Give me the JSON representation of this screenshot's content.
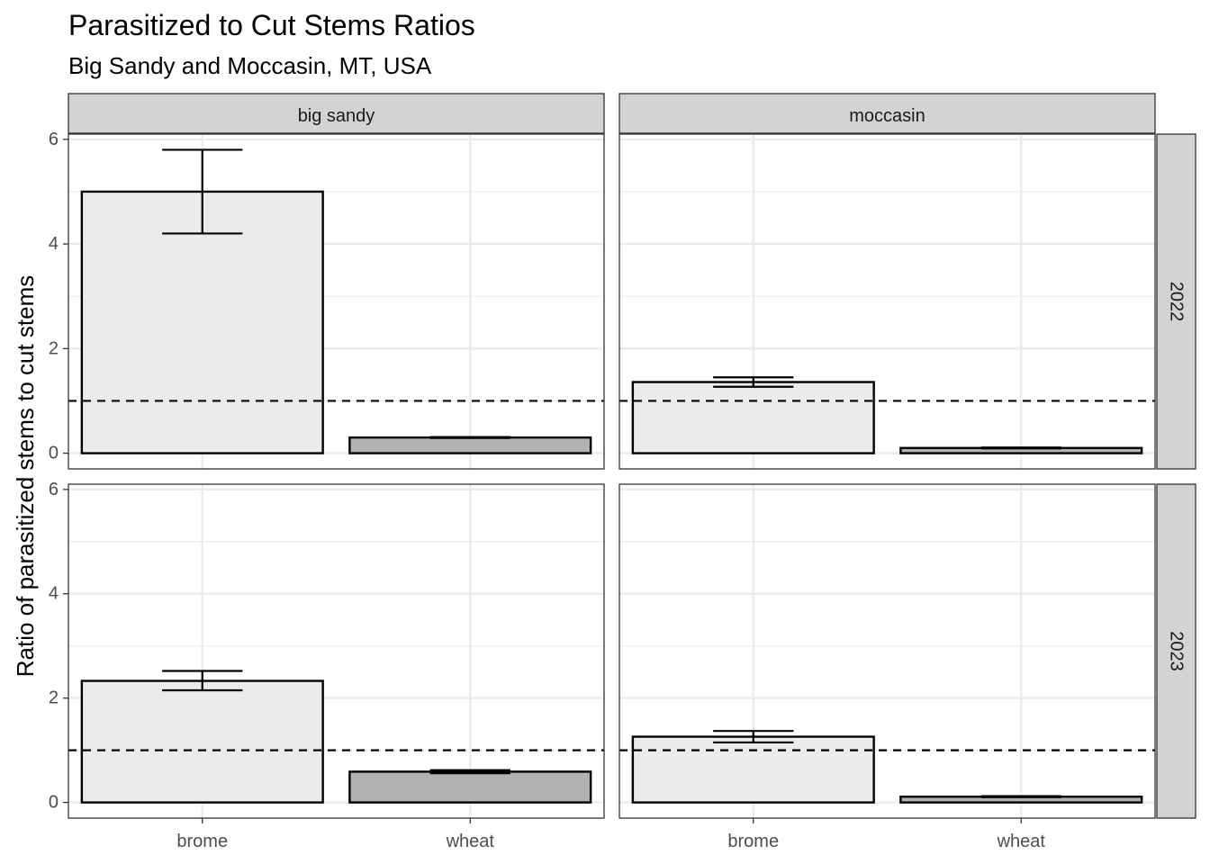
{
  "chart_data": {
    "type": "bar",
    "title": "Parasitized to Cut Stems Ratios",
    "subtitle": "Big Sandy and Moccasin, MT, USA",
    "ylabel": "Ratio of parasitized stems to cut stems",
    "xlabel": "",
    "categories": [
      "brome",
      "wheat"
    ],
    "ylim": [
      -0.3,
      6.1
    ],
    "yticks": [
      0,
      2,
      4,
      6
    ],
    "reference_line": 1,
    "grid": true,
    "columns": [
      "big sandy",
      "moccasin"
    ],
    "rows": [
      "2022",
      "2023"
    ],
    "colors": {
      "brome": "#ebebeb",
      "wheat": "#b2b2b2",
      "strip": "#d3d3d3",
      "grid": "#ebebeb",
      "border": "#333333"
    },
    "panels": [
      {
        "column": "big sandy",
        "row": "2022",
        "values": [
          5.0,
          0.3
        ],
        "error_low": [
          4.2,
          0.29
        ],
        "error_high": [
          5.8,
          0.31
        ]
      },
      {
        "column": "moccasin",
        "row": "2022",
        "values": [
          1.36,
          0.1
        ],
        "error_low": [
          1.27,
          0.09
        ],
        "error_high": [
          1.45,
          0.11
        ]
      },
      {
        "column": "big sandy",
        "row": "2023",
        "values": [
          2.33,
          0.59
        ],
        "error_low": [
          2.15,
          0.56
        ],
        "error_high": [
          2.52,
          0.62
        ]
      },
      {
        "column": "moccasin",
        "row": "2023",
        "values": [
          1.26,
          0.11
        ],
        "error_low": [
          1.15,
          0.1
        ],
        "error_high": [
          1.37,
          0.12
        ]
      }
    ]
  }
}
